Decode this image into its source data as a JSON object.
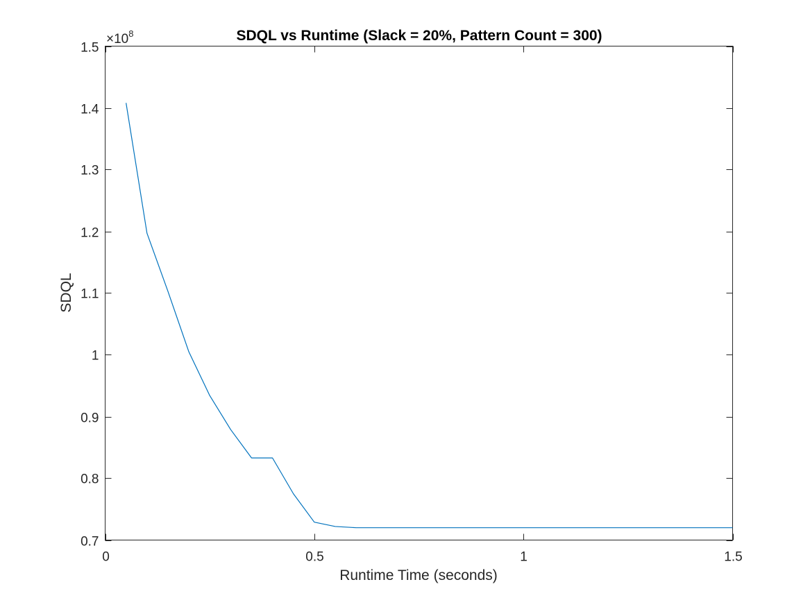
{
  "chart_data": {
    "type": "line",
    "title": "SDQL vs Runtime (Slack = 20%, Pattern Count = 300)",
    "xlabel": "Runtime Time (seconds)",
    "ylabel": "SDQL",
    "y_exponent_label": {
      "base": "×10",
      "power": "8"
    },
    "xlim": [
      0,
      1.5
    ],
    "ylim": [
      0.7,
      1.5
    ],
    "x_ticks": [
      0,
      0.5,
      1,
      1.5
    ],
    "x_tick_labels": [
      "0",
      "0.5",
      "1",
      "1.5"
    ],
    "y_ticks": [
      0.7,
      0.8,
      0.9,
      1.0,
      1.1,
      1.2,
      1.3,
      1.4,
      1.5
    ],
    "y_tick_labels": [
      "0.7",
      "0.8",
      "0.9",
      "1",
      "1.1",
      "1.2",
      "1.3",
      "1.4",
      "1.5"
    ],
    "grid": false,
    "box": true,
    "series": [
      {
        "color": "#0072BD",
        "x": [
          0.05,
          0.1,
          0.15,
          0.2,
          0.25,
          0.3,
          0.35,
          0.4,
          0.45,
          0.5,
          0.55,
          0.6,
          0.65,
          0.7,
          0.75,
          0.8,
          0.85,
          0.9,
          0.95,
          1.0,
          1.05,
          1.1,
          1.15,
          1.2,
          1.25,
          1.3,
          1.35,
          1.4,
          1.45,
          1.5
        ],
        "y": [
          1.408,
          1.197,
          1.103,
          1.005,
          0.934,
          0.879,
          0.833,
          0.833,
          0.775,
          0.729,
          0.722,
          0.72,
          0.72,
          0.72,
          0.72,
          0.72,
          0.72,
          0.72,
          0.72,
          0.72,
          0.72,
          0.72,
          0.72,
          0.72,
          0.72,
          0.72,
          0.72,
          0.72,
          0.72,
          0.72
        ]
      }
    ]
  }
}
